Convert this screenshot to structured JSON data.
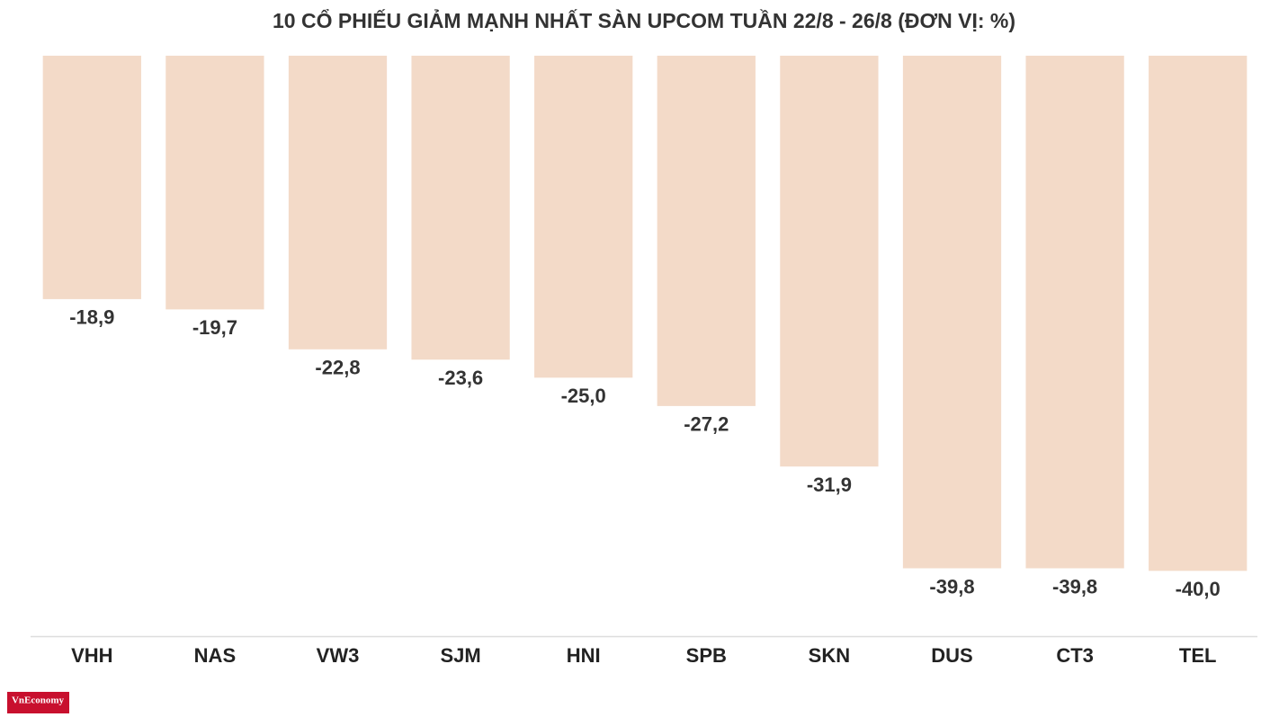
{
  "chart_data": {
    "type": "bar",
    "title": "10 CỔ PHIẾU GIẢM MẠNH NHẤT SÀN UPCOM TUẦN 22/8 - 26/8 (ĐƠN VỊ: %)",
    "categories": [
      "VHH",
      "NAS",
      "VW3",
      "SJM",
      "HNI",
      "SPB",
      "SKN",
      "DUS",
      "CT3",
      "TEL"
    ],
    "values": [
      -18.9,
      -19.7,
      -22.8,
      -23.6,
      -25.0,
      -27.2,
      -31.9,
      -39.8,
      -39.8,
      -40.0
    ],
    "value_labels": [
      "-18,9",
      "-19,7",
      "-22,8",
      "-23,6",
      "-25,0",
      "-27,2",
      "-31,9",
      "-39,8",
      "-39,8",
      "-40,0"
    ],
    "color": "#f3dac8",
    "ylim": [
      0,
      -45
    ]
  },
  "branding": "VnEconomy"
}
